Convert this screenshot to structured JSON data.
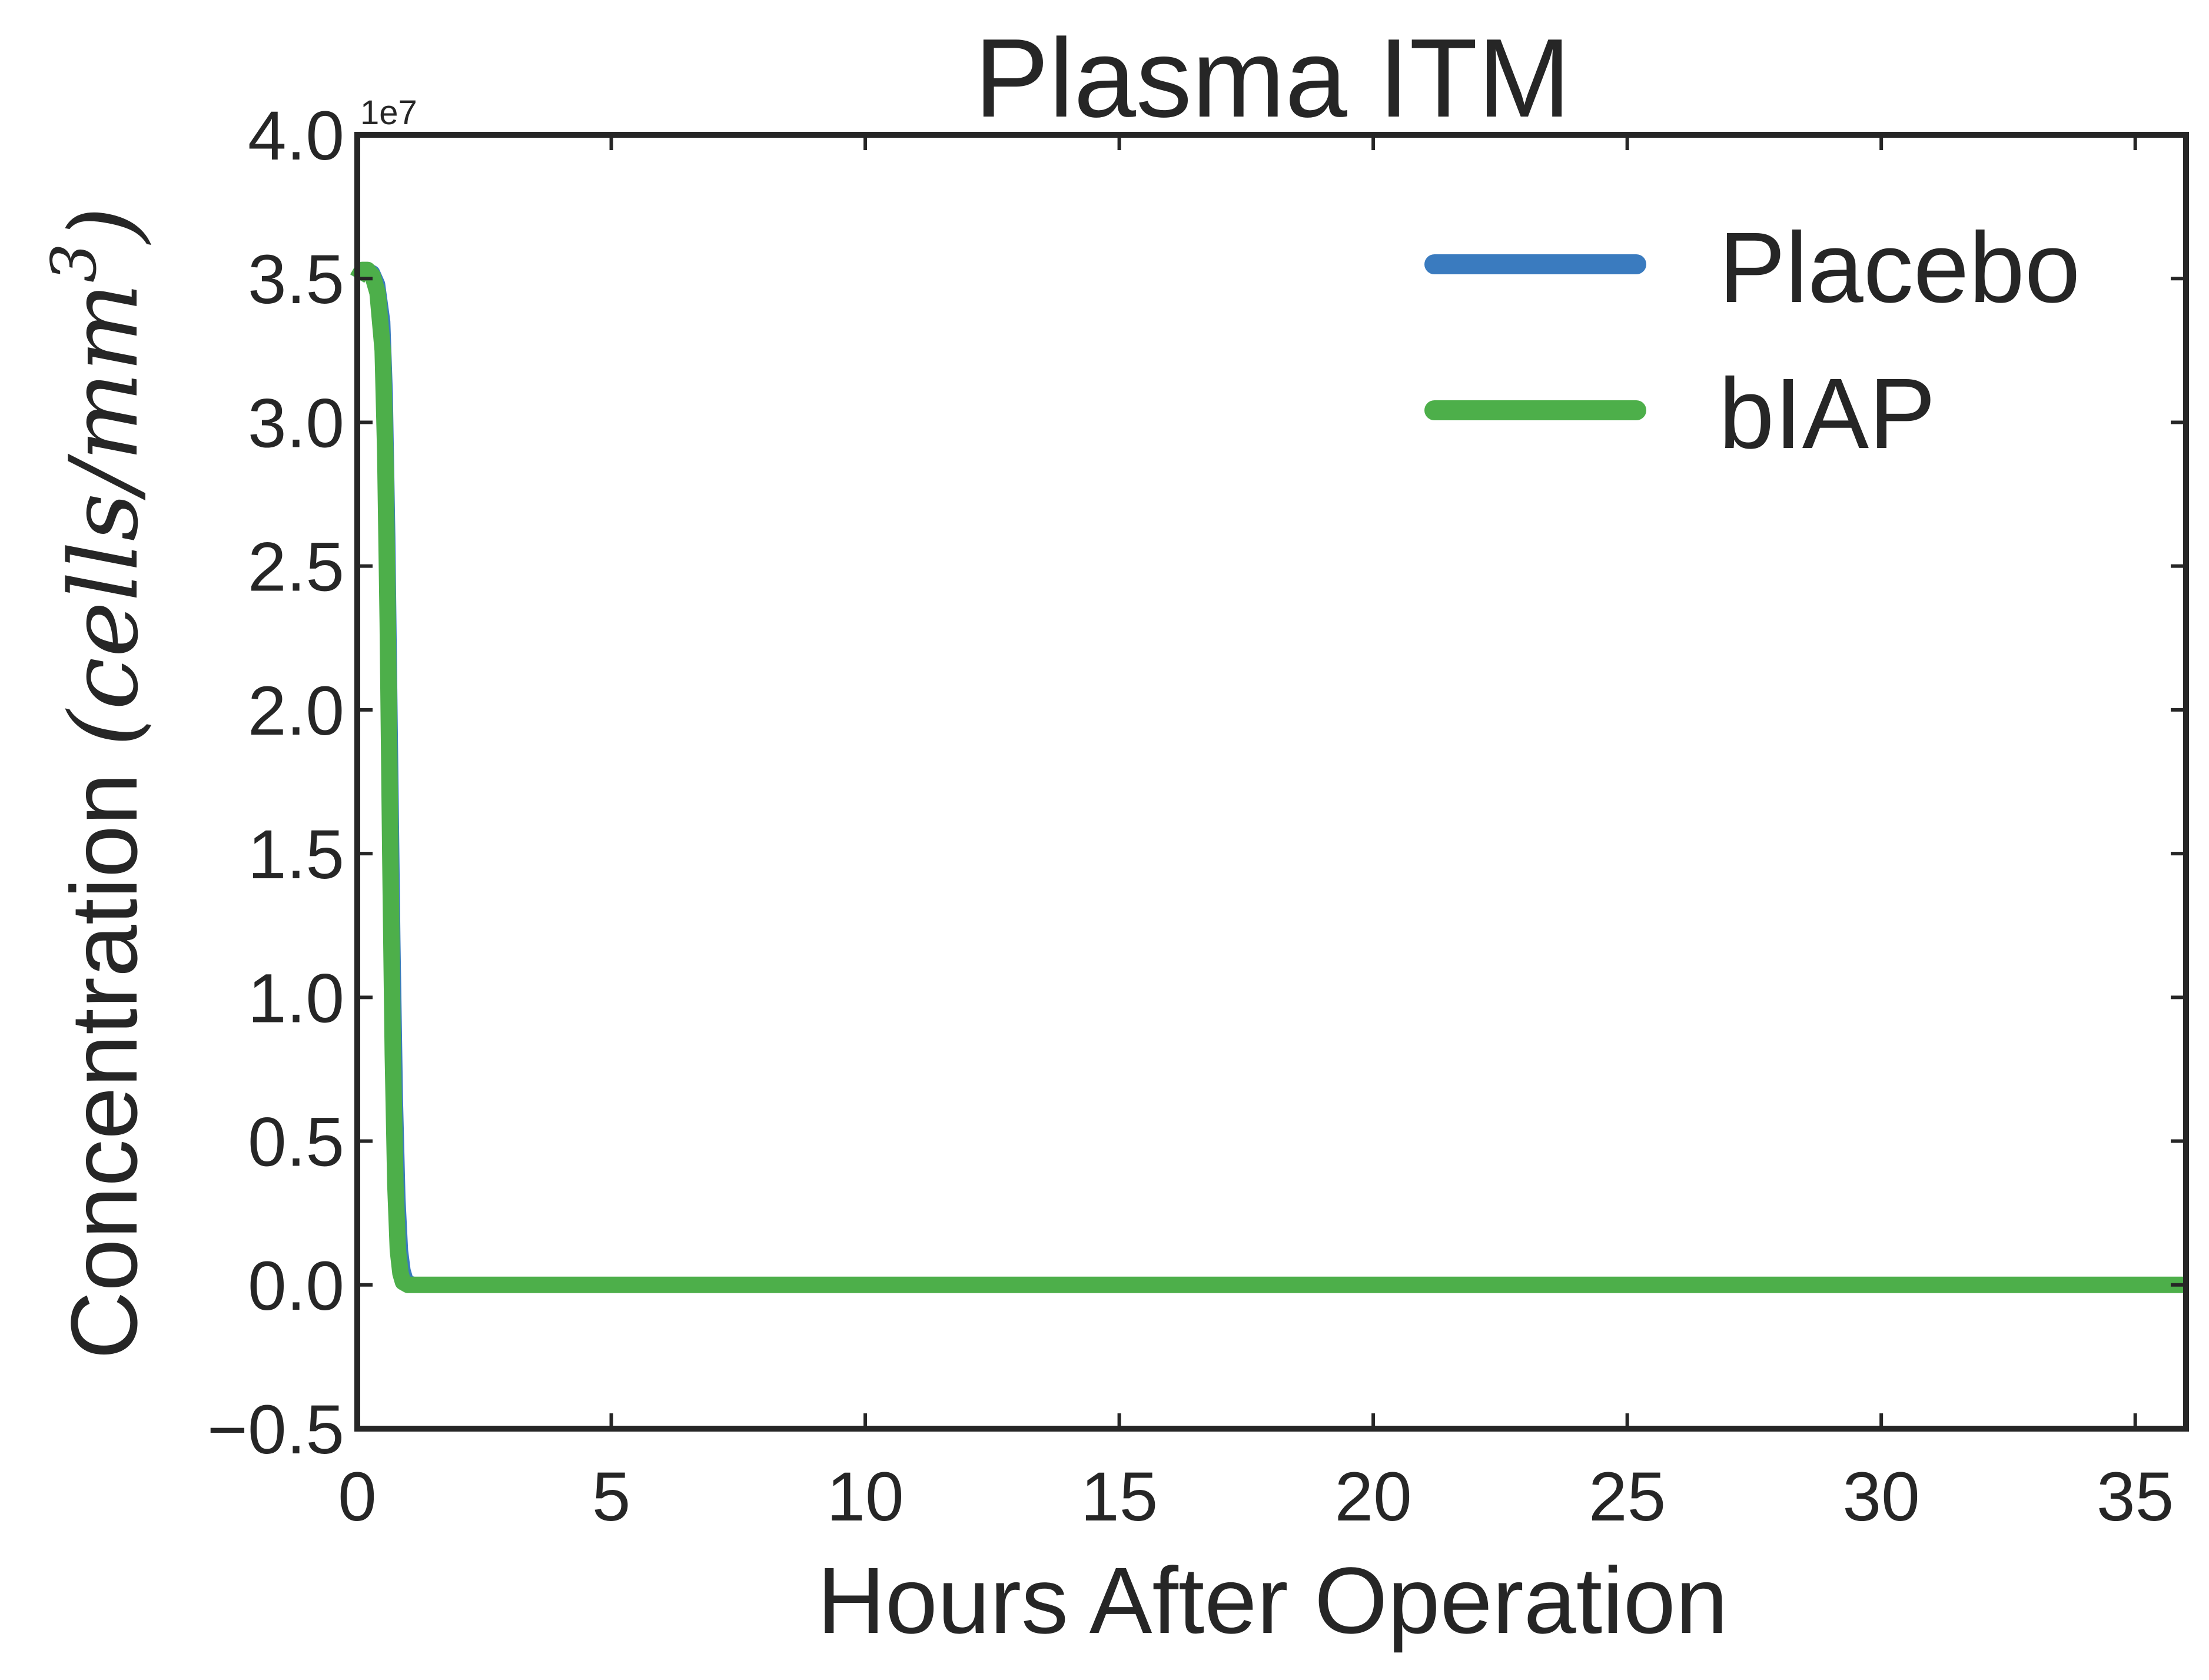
{
  "chart_data": {
    "type": "line",
    "title": "Plasma ITM",
    "xlabel": "Hours After Operation",
    "ylabel_text": "Concentration",
    "ylabel_units": "(cells/mm",
    "ylabel_exponent": "3",
    "ylabel_close": ")",
    "y_offset_label": "1e7",
    "xlim": [
      0,
      36
    ],
    "ylim": [
      -0.5,
      4.0
    ],
    "y_scale_factor": 10000000,
    "xticks": [
      0,
      5,
      10,
      15,
      20,
      25,
      30,
      35
    ],
    "xtick_labels": [
      "0",
      "5",
      "10",
      "15",
      "20",
      "25",
      "30",
      "35"
    ],
    "yticks": [
      -0.5,
      0.0,
      0.5,
      1.0,
      1.5,
      2.0,
      2.5,
      3.0,
      3.5,
      4.0
    ],
    "ytick_labels": [
      "−0.5",
      "0.0",
      "0.5",
      "1.0",
      "1.5",
      "2.0",
      "2.5",
      "3.0",
      "3.5",
      "4.0"
    ],
    "grid": false,
    "legend_position": "top-right",
    "series": [
      {
        "name": "Placebo",
        "color": "#3a7bbf",
        "x": [
          0,
          0.1,
          0.2,
          0.3,
          0.4,
          0.5,
          0.55,
          0.6,
          0.65,
          0.7,
          0.75,
          0.8,
          0.85,
          0.9,
          0.95,
          1.0,
          1.1,
          1.2,
          1.5,
          2,
          5,
          10,
          15,
          20,
          25,
          30,
          36
        ],
        "y": [
          3.5,
          3.53,
          3.53,
          3.52,
          3.48,
          3.35,
          3.1,
          2.6,
          1.9,
          1.2,
          0.65,
          0.3,
          0.12,
          0.05,
          0.02,
          0.008,
          0.002,
          0.0,
          0.0,
          0.0,
          0.0,
          0.0,
          0.0,
          0.0,
          0.0,
          0.0,
          0.0
        ]
      },
      {
        "name": "bIAP",
        "color": "#4daf4a",
        "x": [
          0,
          0.1,
          0.2,
          0.3,
          0.4,
          0.5,
          0.55,
          0.6,
          0.65,
          0.7,
          0.75,
          0.8,
          0.85,
          0.9,
          1.0,
          1.2,
          1.5,
          2,
          5,
          10,
          15,
          20,
          25,
          30,
          36
        ],
        "y": [
          3.5,
          3.53,
          3.53,
          3.51,
          3.45,
          3.25,
          2.9,
          2.3,
          1.5,
          0.8,
          0.35,
          0.12,
          0.04,
          0.01,
          0.0,
          0.0,
          0.0,
          0.0,
          0.0,
          0.0,
          0.0,
          0.0,
          0.0,
          0.0,
          0.0
        ]
      }
    ]
  }
}
